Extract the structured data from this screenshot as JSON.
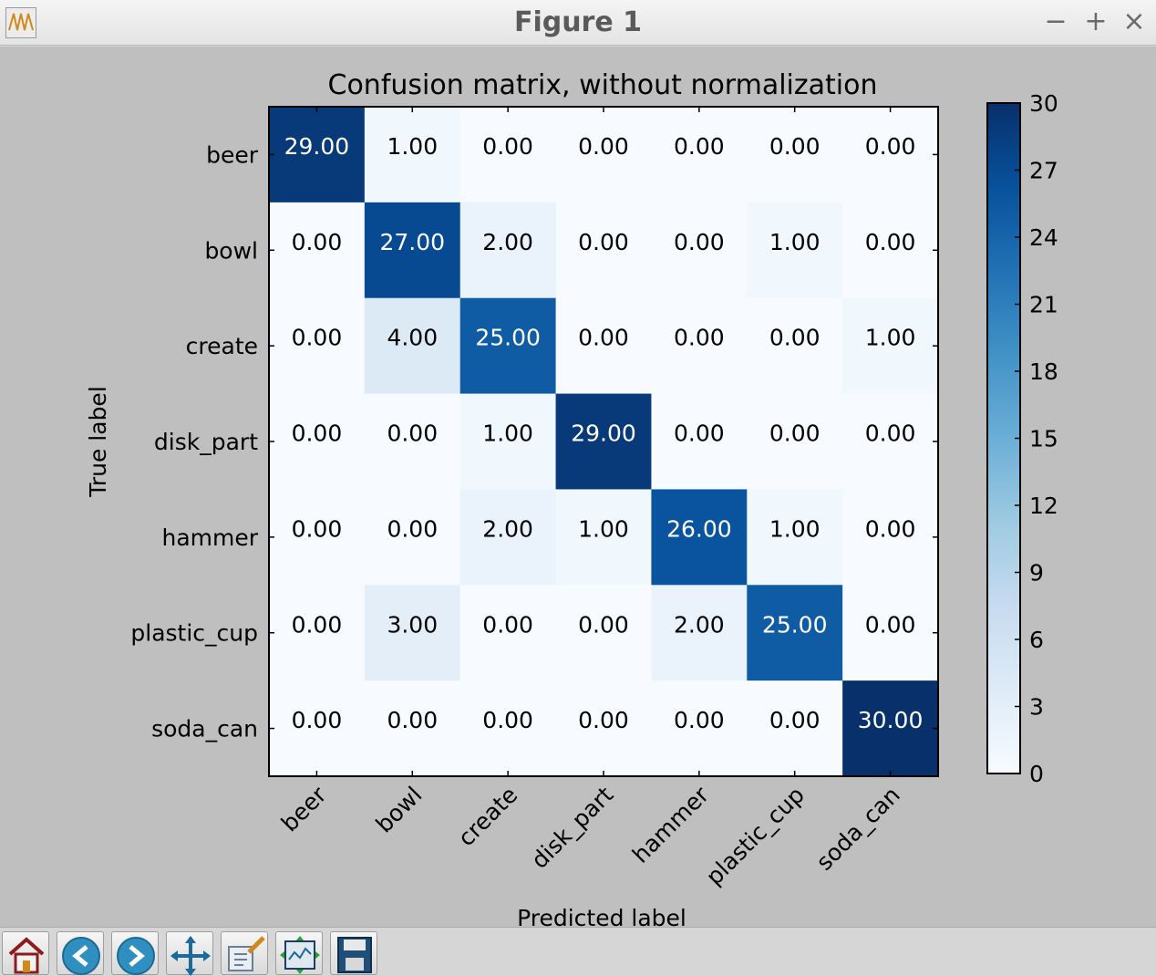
{
  "window": {
    "title": "Figure 1",
    "minimize_label": "−",
    "maximize_label": "+",
    "close_label": "×"
  },
  "toolbar": {
    "buttons": [
      {
        "name": "home",
        "icon": "home-icon"
      },
      {
        "name": "back",
        "icon": "back-arrow-icon"
      },
      {
        "name": "forward",
        "icon": "forward-arrow-icon"
      },
      {
        "name": "pan",
        "icon": "move-arrows-icon"
      },
      {
        "name": "zoom",
        "icon": "zoom-rect-icon"
      },
      {
        "name": "configure-subplots",
        "icon": "subplots-icon"
      },
      {
        "name": "save",
        "icon": "floppy-disk-icon"
      }
    ]
  },
  "chart_data": {
    "type": "heatmap",
    "title": "Confusion matrix, without normalization",
    "xlabel": "Predicted label",
    "ylabel": "True label",
    "x_categories": [
      "beer",
      "bowl",
      "create",
      "disk_part",
      "hammer",
      "plastic_cup",
      "soda_can"
    ],
    "y_categories": [
      "beer",
      "bowl",
      "create",
      "disk_part",
      "hammer",
      "plastic_cup",
      "soda_can"
    ],
    "values": [
      [
        29,
        1,
        0,
        0,
        0,
        0,
        0
      ],
      [
        0,
        27,
        2,
        0,
        0,
        1,
        0
      ],
      [
        0,
        4,
        25,
        0,
        0,
        0,
        1
      ],
      [
        0,
        0,
        1,
        29,
        0,
        0,
        0
      ],
      [
        0,
        0,
        2,
        1,
        26,
        1,
        0
      ],
      [
        0,
        3,
        0,
        0,
        2,
        25,
        0
      ],
      [
        0,
        0,
        0,
        0,
        0,
        0,
        30
      ]
    ],
    "cell_labels": [
      [
        "29.00",
        "1.00",
        "0.00",
        "0.00",
        "0.00",
        "0.00",
        "0.00"
      ],
      [
        "0.00",
        "27.00",
        "2.00",
        "0.00",
        "0.00",
        "1.00",
        "0.00"
      ],
      [
        "0.00",
        "4.00",
        "25.00",
        "0.00",
        "0.00",
        "0.00",
        "1.00"
      ],
      [
        "0.00",
        "0.00",
        "1.00",
        "29.00",
        "0.00",
        "0.00",
        "0.00"
      ],
      [
        "0.00",
        "0.00",
        "2.00",
        "1.00",
        "26.00",
        "1.00",
        "0.00"
      ],
      [
        "0.00",
        "3.00",
        "0.00",
        "0.00",
        "2.00",
        "25.00",
        "0.00"
      ],
      [
        "0.00",
        "0.00",
        "0.00",
        "0.00",
        "0.00",
        "0.00",
        "30.00"
      ]
    ],
    "colormap": "Blues",
    "colorbar": {
      "range": [
        0,
        30
      ],
      "ticks": [
        0,
        3,
        6,
        9,
        12,
        15,
        18,
        21,
        24,
        27,
        30
      ],
      "tick_labels": [
        "0",
        "3",
        "6",
        "9",
        "12",
        "15",
        "18",
        "21",
        "24",
        "27",
        "30"
      ]
    },
    "grid": false
  }
}
